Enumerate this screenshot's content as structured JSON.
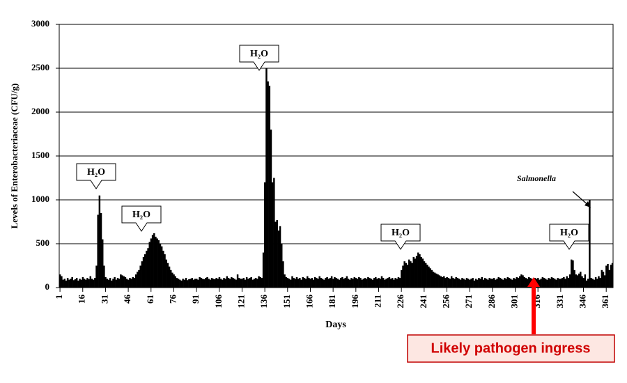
{
  "chart_data": {
    "type": "bar",
    "xlabel": "Days",
    "ylabel": "Levels of Enterobacteriaceae (CFU/g)",
    "color": "#000000",
    "grid": true,
    "xlim": [
      0.5,
      365.5
    ],
    "ylim": [
      0,
      3000
    ],
    "yticks": [
      0,
      500,
      1000,
      1500,
      2000,
      2500,
      3000
    ],
    "xticks": [
      1,
      16,
      31,
      46,
      61,
      76,
      91,
      106,
      121,
      136,
      151,
      166,
      181,
      196,
      211,
      226,
      241,
      256,
      271,
      286,
      301,
      316,
      331,
      346,
      361
    ],
    "x": [
      1,
      2,
      3,
      4,
      5,
      6,
      7,
      8,
      9,
      10,
      11,
      12,
      13,
      14,
      15,
      16,
      17,
      18,
      19,
      20,
      21,
      22,
      23,
      24,
      25,
      26,
      27,
      28,
      29,
      30,
      31,
      32,
      33,
      34,
      35,
      36,
      37,
      38,
      39,
      40,
      41,
      42,
      43,
      44,
      45,
      46,
      47,
      48,
      49,
      50,
      51,
      52,
      53,
      54,
      55,
      56,
      57,
      58,
      59,
      60,
      61,
      62,
      63,
      64,
      65,
      66,
      67,
      68,
      69,
      70,
      71,
      72,
      73,
      74,
      75,
      76,
      77,
      78,
      79,
      80,
      81,
      82,
      83,
      84,
      85,
      86,
      87,
      88,
      89,
      90,
      91,
      92,
      93,
      94,
      95,
      96,
      97,
      98,
      99,
      100,
      101,
      102,
      103,
      104,
      105,
      106,
      107,
      108,
      109,
      110,
      111,
      112,
      113,
      114,
      115,
      116,
      117,
      118,
      119,
      120,
      121,
      122,
      123,
      124,
      125,
      126,
      127,
      128,
      129,
      130,
      131,
      132,
      133,
      134,
      135,
      136,
      137,
      138,
      139,
      140,
      141,
      142,
      143,
      144,
      145,
      146,
      147,
      148,
      149,
      150,
      151,
      152,
      153,
      154,
      155,
      156,
      157,
      158,
      159,
      160,
      161,
      162,
      163,
      164,
      165,
      166,
      167,
      168,
      169,
      170,
      171,
      172,
      173,
      174,
      175,
      176,
      177,
      178,
      179,
      180,
      181,
      182,
      183,
      184,
      185,
      186,
      187,
      188,
      189,
      190,
      191,
      192,
      193,
      194,
      195,
      196,
      197,
      198,
      199,
      200,
      201,
      202,
      203,
      204,
      205,
      206,
      207,
      208,
      209,
      210,
      211,
      212,
      213,
      214,
      215,
      216,
      217,
      218,
      219,
      220,
      221,
      222,
      223,
      224,
      225,
      226,
      227,
      228,
      229,
      230,
      231,
      232,
      233,
      234,
      235,
      236,
      237,
      238,
      239,
      240,
      241,
      242,
      243,
      244,
      245,
      246,
      247,
      248,
      249,
      250,
      251,
      252,
      253,
      254,
      255,
      256,
      257,
      258,
      259,
      260,
      261,
      262,
      263,
      264,
      265,
      266,
      267,
      268,
      269,
      270,
      271,
      272,
      273,
      274,
      275,
      276,
      277,
      278,
      279,
      280,
      281,
      282,
      283,
      284,
      285,
      286,
      287,
      288,
      289,
      290,
      291,
      292,
      293,
      294,
      295,
      296,
      297,
      298,
      299,
      300,
      301,
      302,
      303,
      304,
      305,
      306,
      307,
      308,
      309,
      310,
      311,
      312,
      313,
      314,
      315,
      316,
      317,
      318,
      319,
      320,
      321,
      322,
      323,
      324,
      325,
      326,
      327,
      328,
      329,
      330,
      331,
      332,
      333,
      334,
      335,
      336,
      337,
      338,
      339,
      340,
      341,
      342,
      343,
      344,
      345,
      346,
      347,
      348,
      349,
      350,
      351,
      352,
      353,
      354,
      355,
      356,
      357,
      358,
      359,
      360,
      361,
      362,
      363,
      364,
      365
    ],
    "values": [
      150,
      130,
      90,
      100,
      80,
      110,
      90,
      100,
      120,
      85,
      95,
      110,
      80,
      100,
      90,
      120,
      100,
      90,
      110,
      95,
      130,
      100,
      90,
      110,
      250,
      830,
      1050,
      850,
      550,
      250,
      120,
      100,
      90,
      110,
      80,
      100,
      120,
      90,
      110,
      100,
      150,
      140,
      130,
      120,
      100,
      90,
      110,
      100,
      120,
      110,
      150,
      180,
      200,
      250,
      300,
      350,
      380,
      420,
      450,
      520,
      560,
      600,
      620,
      580,
      560,
      540,
      500,
      470,
      420,
      380,
      320,
      280,
      240,
      200,
      170,
      150,
      130,
      110,
      100,
      90,
      80,
      100,
      90,
      110,
      85,
      95,
      100,
      110,
      90,
      100,
      100,
      90,
      120,
      110,
      100,
      95,
      110,
      120,
      100,
      90,
      110,
      100,
      95,
      110,
      100,
      120,
      100,
      90,
      110,
      100,
      130,
      110,
      100,
      120,
      110,
      100,
      90,
      150,
      110,
      100,
      100,
      110,
      90,
      120,
      100,
      110,
      120,
      90,
      100,
      110,
      100,
      130,
      120,
      110,
      400,
      1200,
      2500,
      2350,
      2300,
      1800,
      1200,
      1250,
      750,
      770,
      650,
      700,
      500,
      300,
      150,
      120,
      110,
      100,
      90,
      130,
      110,
      100,
      120,
      100,
      110,
      90,
      120,
      110,
      100,
      130,
      110,
      100,
      110,
      90,
      120,
      110,
      100,
      130,
      110,
      100,
      90,
      110,
      120,
      100,
      110,
      130,
      100,
      120,
      110,
      100,
      90,
      110,
      120,
      100,
      110,
      130,
      100,
      90,
      110,
      100,
      120,
      110,
      100,
      120,
      110,
      90,
      100,
      110,
      100,
      120,
      110,
      100,
      90,
      110,
      120,
      100,
      110,
      100,
      130,
      110,
      90,
      100,
      110,
      120,
      100,
      110,
      90,
      110,
      100,
      120,
      110,
      200,
      250,
      300,
      280,
      260,
      320,
      300,
      280,
      350,
      330,
      360,
      400,
      380,
      350,
      330,
      300,
      280,
      260,
      240,
      220,
      200,
      180,
      170,
      160,
      150,
      140,
      130,
      120,
      130,
      110,
      120,
      110,
      100,
      130,
      110,
      100,
      120,
      110,
      100,
      90,
      110,
      100,
      90,
      110,
      100,
      90,
      100,
      110,
      80,
      100,
      90,
      110,
      100,
      120,
      90,
      110,
      100,
      90,
      110,
      100,
      100,
      110,
      90,
      100,
      120,
      110,
      100,
      90,
      110,
      100,
      120,
      110,
      100,
      90,
      110,
      100,
      120,
      110,
      130,
      150,
      140,
      120,
      110,
      100,
      120,
      110,
      100,
      90,
      110,
      100,
      110,
      90,
      100,
      120,
      110,
      100,
      90,
      110,
      100,
      120,
      110,
      100,
      90,
      110,
      100,
      100,
      110,
      120,
      100,
      130,
      110,
      150,
      320,
      310,
      200,
      150,
      140,
      160,
      180,
      130,
      110,
      150,
      80,
      100,
      1000,
      110,
      100,
      90,
      120,
      100,
      130,
      110,
      200,
      180,
      140,
      250,
      270,
      200,
      260,
      280
    ],
    "annotations": [
      "H₂O",
      "H₂O",
      "H₂O",
      "H₂O",
      "H₂O",
      "Salmonella",
      "Likely pathogen ingress"
    ]
  }
}
